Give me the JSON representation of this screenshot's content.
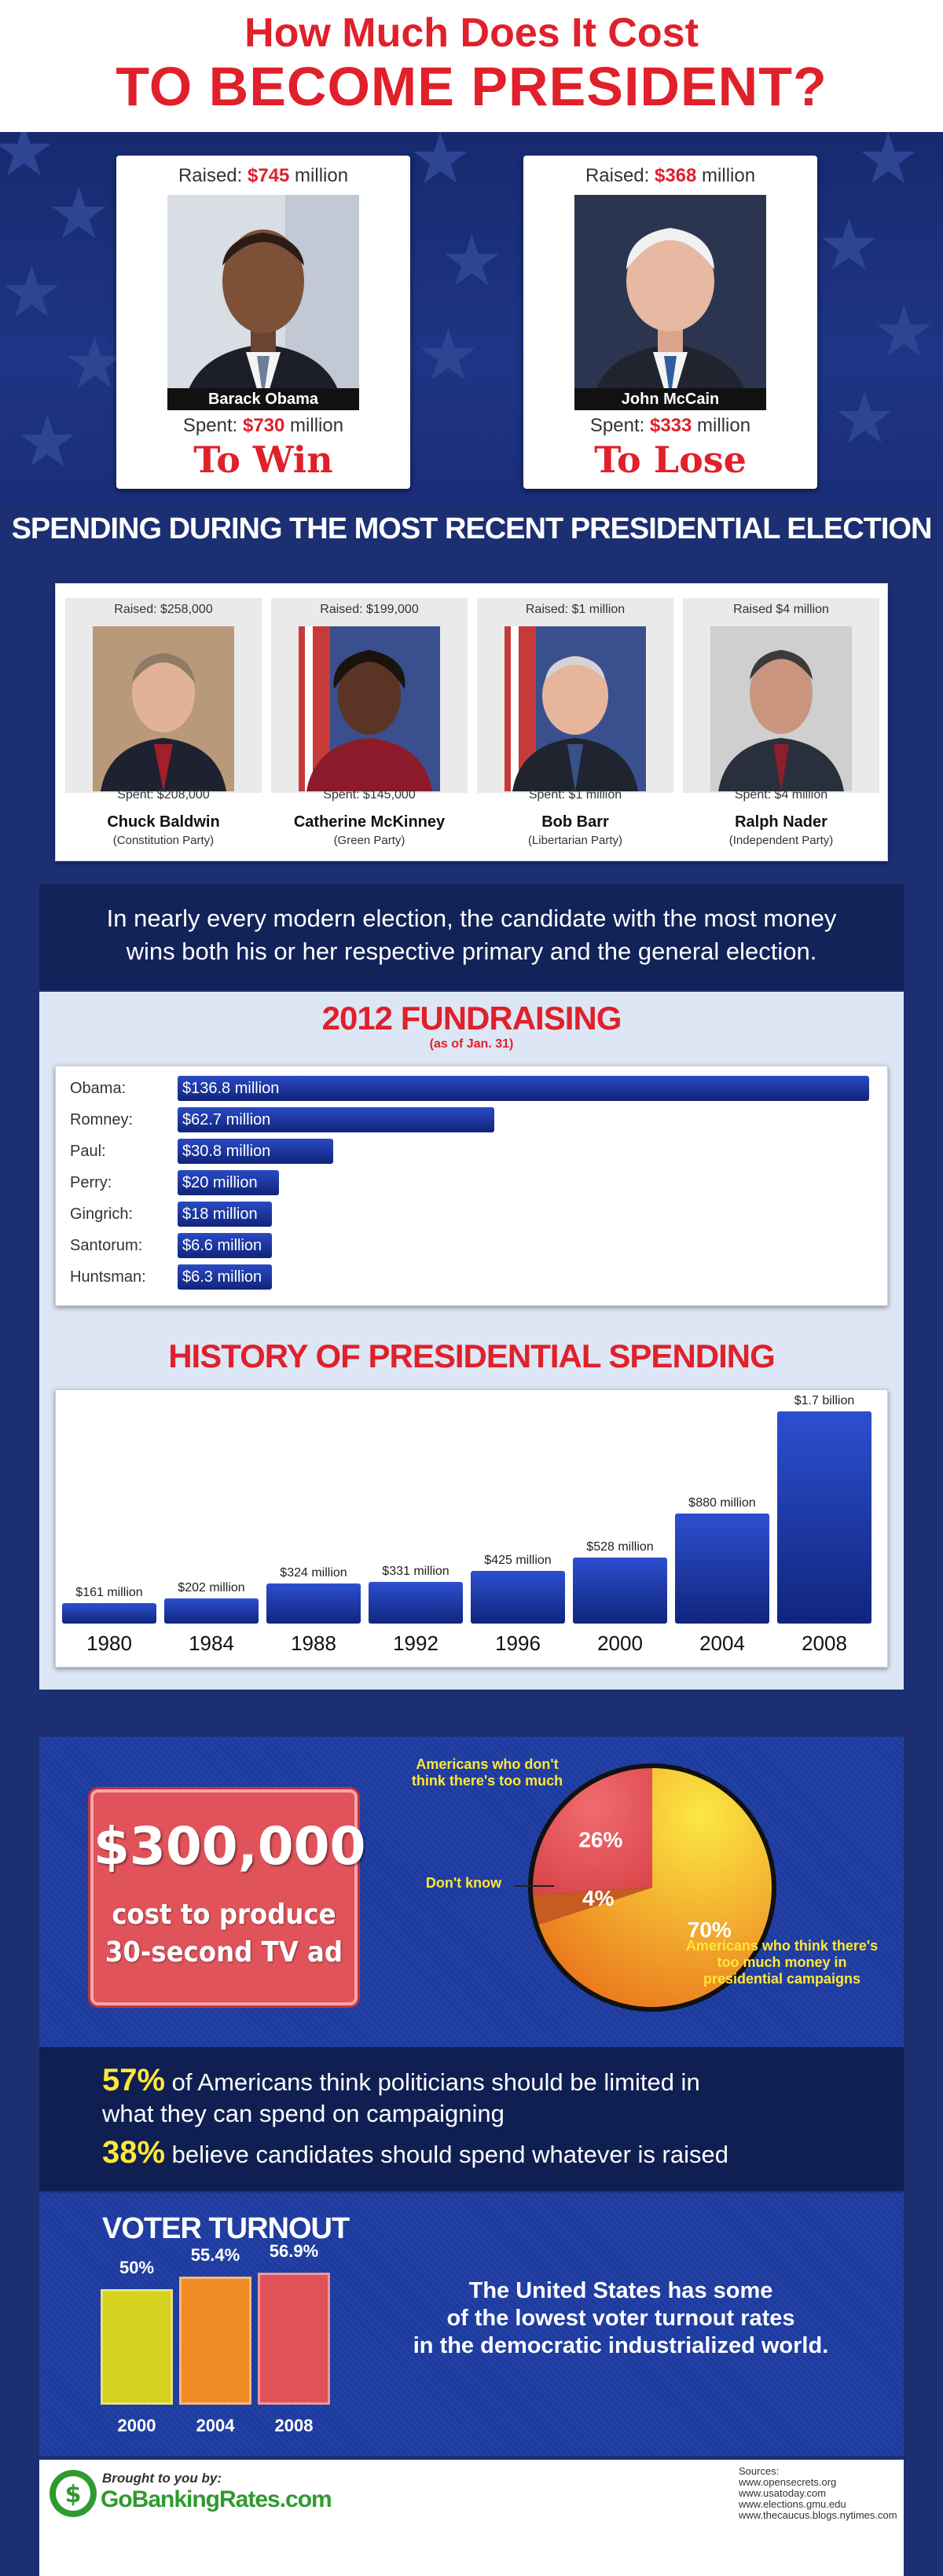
{
  "header": {
    "line1": "How Much Does It Cost",
    "line2": "TO BECOME PRESIDENT?"
  },
  "main_candidates": [
    {
      "raised_prefix": "Raised: ",
      "raised_amount": "$745",
      "raised_suffix": " million",
      "name": "Barack Obama",
      "spent_prefix": "Spent: ",
      "spent_amount": "$730",
      "spent_suffix": " million",
      "result": "To Win"
    },
    {
      "raised_prefix": "Raised: ",
      "raised_amount": "$368",
      "raised_suffix": " million",
      "name": "John McCain",
      "spent_prefix": "Spent: ",
      "spent_amount": "$333",
      "spent_suffix": " million",
      "result": "To Lose"
    }
  ],
  "recent_election": {
    "title": "SPENDING DURING THE MOST RECENT PRESIDENTIAL ELECTION",
    "candidates": [
      {
        "raised": "Raised: $258,000",
        "spent": "Spent: $208,000",
        "name": "Chuck Baldwin",
        "party": "(Constitution Party)"
      },
      {
        "raised": "Raised: $199,000",
        "spent": "Spent: $145,000",
        "name": "Catherine McKinney",
        "party": "(Green Party)"
      },
      {
        "raised": "Raised: $1 million",
        "spent": "Spent: $1 million",
        "name": "Bob Barr",
        "party": "(Libertarian Party)"
      },
      {
        "raised": "Raised $4 million",
        "spent": "Spent: $4 million",
        "name": "Ralph Nader",
        "party": "(Independent Party)"
      }
    ]
  },
  "money_note": {
    "line1": "In nearly every modern election, the candidate with the most money",
    "line2": "wins both his or her respective primary and the general election."
  },
  "fundraising": {
    "title": "2012 FUNDRAISING",
    "subtitle": "(as of Jan. 31)",
    "items": [
      {
        "label": "Obama:",
        "value": 136.8,
        "text": "$136.8 million"
      },
      {
        "label": "Romney:",
        "value": 62.7,
        "text": "$62.7 million"
      },
      {
        "label": "Paul:",
        "value": 30.8,
        "text": "$30.8 million"
      },
      {
        "label": "Perry:",
        "value": 20,
        "text": "$20 million"
      },
      {
        "label": "Gingrich:",
        "value": 18,
        "text": "$18 million"
      },
      {
        "label": "Santorum:",
        "value": 6.6,
        "text": "$6.6 million"
      },
      {
        "label": "Huntsman:",
        "value": 6.3,
        "text": "$6.3 million"
      }
    ]
  },
  "history": {
    "title": "HISTORY OF PRESIDENTIAL SPENDING",
    "items": [
      {
        "year": "1980",
        "value": 161,
        "text": "$161 million"
      },
      {
        "year": "1984",
        "value": 202,
        "text": "$202 million"
      },
      {
        "year": "1988",
        "value": 324,
        "text": "$324 million"
      },
      {
        "year": "1992",
        "value": 331,
        "text": "$331 million"
      },
      {
        "year": "1996",
        "value": 425,
        "text": "$425 million"
      },
      {
        "year": "2000",
        "value": 528,
        "text": "$528 million"
      },
      {
        "year": "2004",
        "value": 880,
        "text": "$880 million"
      },
      {
        "year": "2008",
        "value": 1700,
        "text": "$1.7 billion"
      }
    ]
  },
  "tv_ad": {
    "amount": "$300,000",
    "line1": "cost to produce",
    "line2": "30-second TV ad"
  },
  "poll_pie": {
    "slices": [
      {
        "label": "Americans who think there's too much money in presidential campaigns",
        "value": 70,
        "text": "70%",
        "color": "#f2a51e"
      },
      {
        "label": "Don't know",
        "value": 4,
        "text": "4%",
        "color": "#c85a1e"
      },
      {
        "label": "Americans who don't think there's too much",
        "value": 26,
        "text": "26%",
        "color": "#e4484f"
      }
    ],
    "note_dont_think": "Americans who don't think there's too much",
    "note_dont_know": "Don't know",
    "note_think": "Americans who think there's too much money in presidential campaigns"
  },
  "opinion": {
    "stat1_pct": "57%",
    "stat1_text": " of Americans think politicians should be limited in",
    "stat1_text2": "what they can spend on campaigning",
    "stat2_pct": "38%",
    "stat2_text": " believe candidates should spend whatever is raised"
  },
  "turnout": {
    "title": "VOTER TURNOUT",
    "items": [
      {
        "year": "2000",
        "value": 50,
        "text": "50%",
        "color": "#d4d21e"
      },
      {
        "year": "2004",
        "value": 55.4,
        "text": "55.4%",
        "color": "#ef8a25"
      },
      {
        "year": "2008",
        "value": 56.9,
        "text": "56.9%",
        "color": "#e0525a"
      }
    ],
    "note_line1": "The United States has some",
    "note_line2": "of the lowest voter turnout rates",
    "note_line3": "in the democratic industrialized world."
  },
  "footer": {
    "brought": "Brought to you by:",
    "brand": "GoBankingRates.com",
    "sources_title": "Sources:",
    "sources": [
      "www.opensecrets.org",
      "www.usatoday.com",
      "www.elections.gmu.edu",
      "www.thecaucus.blogs.nytimes.com"
    ]
  }
}
